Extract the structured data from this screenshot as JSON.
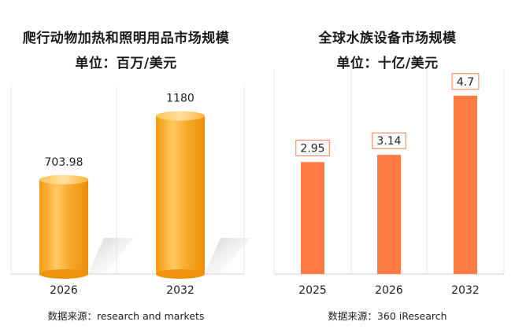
{
  "chart_data": [
    {
      "type": "bar",
      "title": "爬行动物加热和照明用品市场规模",
      "subtitle": "单位：百万/美元",
      "categories": [
        "2026",
        "2032"
      ],
      "values": [
        703.98,
        1180
      ],
      "value_labels": [
        "703.98",
        "1180"
      ],
      "ylim": [
        0,
        1400
      ],
      "grid": false,
      "legend": "none",
      "source": "数据来源：research and markets",
      "bar_color": "#F7A21B",
      "bar_highlight": "#FFD27A",
      "frame_color": "#E8E8E8"
    },
    {
      "type": "bar",
      "title": "全球水族设备市场规模",
      "subtitle": "单位：十亿/美元",
      "categories": [
        "2025",
        "2026",
        "2032"
      ],
      "values": [
        2.95,
        3.14,
        4.7
      ],
      "value_labels": [
        "2.95",
        "3.14",
        "4.7"
      ],
      "ylim": [
        0,
        5.4
      ],
      "grid": false,
      "legend": "none",
      "source": "数据来源：360 iResearch",
      "bar_color": "#FF7A45",
      "label_border_color": "#FF7A45",
      "frame_color": "#E8E8E8"
    }
  ]
}
